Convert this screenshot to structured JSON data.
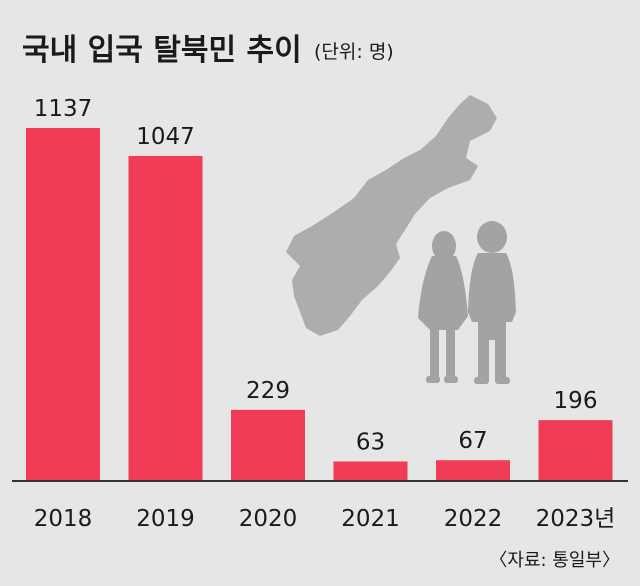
{
  "chart_data": {
    "type": "bar",
    "title": "국내 입국 탈북민 추이",
    "unit": "(단위: 명)",
    "categories": [
      "2018",
      "2019",
      "2020",
      "2021",
      "2022",
      "2023년"
    ],
    "values": [
      1137,
      1047,
      229,
      63,
      67,
      196
    ],
    "value_labels": [
      "1137",
      "1047",
      "229",
      "63",
      "67",
      "196"
    ],
    "ylim": [
      0,
      1137
    ],
    "grid": false,
    "bar_color": "#f03c57",
    "source": "〈자료: 통일부〉"
  },
  "illustration": {
    "map_color": "#adadad",
    "figure_color": "#a3a3a3"
  }
}
